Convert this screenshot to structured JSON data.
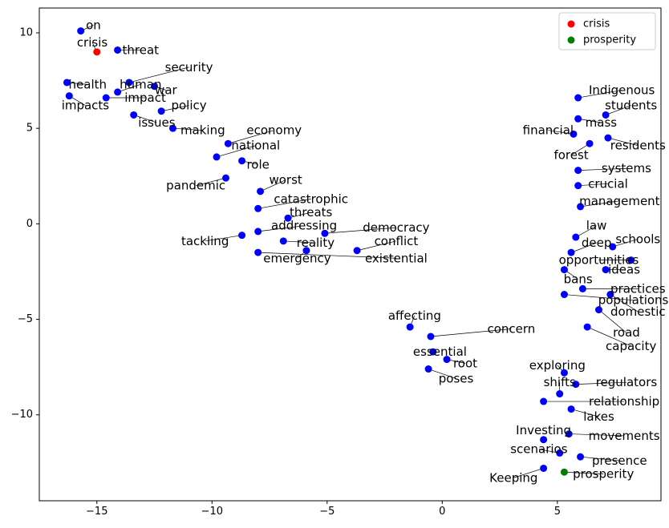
{
  "chart_data": {
    "type": "scatter",
    "title": "",
    "xlabel": "",
    "ylabel": "",
    "xlim": [
      -17.5,
      9.5
    ],
    "ylim": [
      -14.5,
      11.3
    ],
    "xticks": [
      -15,
      -10,
      -5,
      0,
      5
    ],
    "yticks": [
      -10,
      -5,
      0,
      5,
      10
    ],
    "tick_labels_x": [
      "−15",
      "−10",
      "−5",
      "0",
      "5"
    ],
    "tick_labels_y": [
      "−10",
      "−5",
      "0",
      "5",
      "10"
    ],
    "grid": false,
    "legend_position": "top-right",
    "colors": {
      "words": "#0000ff",
      "crisis": "#ff0000",
      "prosperity": "#008000",
      "connector": "#000000"
    },
    "legend": [
      {
        "name": "crisis",
        "color": "#ff0000"
      },
      {
        "name": "prosperity",
        "color": "#008000"
      }
    ],
    "series": [
      {
        "name": "words",
        "color": "#0000ff",
        "points": [
          {
            "label": "on",
            "x": -15.7,
            "y": 10.1,
            "label_pos": [
              -15.15,
              10.4
            ]
          },
          {
            "label": "threat",
            "x": -14.1,
            "y": 9.1,
            "label_pos": [
              -13.1,
              9.1
            ]
          },
          {
            "label": "security",
            "x": -13.6,
            "y": 7.4,
            "label_pos": [
              -11.0,
              8.2
            ]
          },
          {
            "label": "health",
            "x": -16.3,
            "y": 7.4,
            "label_pos": [
              -15.4,
              7.3
            ]
          },
          {
            "label": "human",
            "x": -14.1,
            "y": 6.9,
            "label_pos": [
              -13.1,
              7.3
            ]
          },
          {
            "label": "war",
            "x": -12.5,
            "y": 7.2,
            "label_pos": [
              -12.0,
              7.0
            ]
          },
          {
            "label": "impacts",
            "x": -16.2,
            "y": 6.7,
            "label_pos": [
              -15.5,
              6.2
            ]
          },
          {
            "label": "impact",
            "x": -14.6,
            "y": 6.6,
            "label_pos": [
              -12.9,
              6.6
            ]
          },
          {
            "label": "policy",
            "x": -12.2,
            "y": 5.9,
            "label_pos": [
              -11.0,
              6.2
            ]
          },
          {
            "label": "issues",
            "x": -13.4,
            "y": 5.7,
            "label_pos": [
              -12.4,
              5.3
            ]
          },
          {
            "label": "making",
            "x": -11.7,
            "y": 5.0,
            "label_pos": [
              -10.4,
              4.9
            ]
          },
          {
            "label": "economy",
            "x": -9.3,
            "y": 4.2,
            "label_pos": [
              -7.3,
              4.9
            ]
          },
          {
            "label": "national",
            "x": -9.8,
            "y": 3.5,
            "label_pos": [
              -8.1,
              4.1
            ]
          },
          {
            "label": "role",
            "x": -8.7,
            "y": 3.3,
            "label_pos": [
              -8.0,
              3.1
            ]
          },
          {
            "label": "pandemic",
            "x": -9.4,
            "y": 2.4,
            "label_pos": [
              -10.7,
              2.0
            ]
          },
          {
            "label": "worst",
            "x": -7.9,
            "y": 1.7,
            "label_pos": [
              -6.8,
              2.3
            ]
          },
          {
            "label": "catastrophic",
            "x": -8.0,
            "y": 0.8,
            "label_pos": [
              -5.7,
              1.3
            ]
          },
          {
            "label": "threats",
            "x": -6.7,
            "y": 0.3,
            "label_pos": [
              -5.7,
              0.6
            ]
          },
          {
            "label": "addressing",
            "x": -8.0,
            "y": -0.4,
            "label_pos": [
              -6.0,
              -0.1
            ]
          },
          {
            "label": "democracy",
            "x": -5.1,
            "y": -0.5,
            "label_pos": [
              -2.0,
              -0.2
            ]
          },
          {
            "label": "tackling",
            "x": -8.7,
            "y": -0.6,
            "label_pos": [
              -10.3,
              -0.9
            ]
          },
          {
            "label": "reality",
            "x": -6.9,
            "y": -0.9,
            "label_pos": [
              -5.5,
              -1.0
            ]
          },
          {
            "label": "conflict",
            "x": -3.7,
            "y": -1.4,
            "label_pos": [
              -2.0,
              -0.9
            ]
          },
          {
            "label": "emergency",
            "x": -5.9,
            "y": -1.4,
            "label_pos": [
              -6.3,
              -1.8
            ]
          },
          {
            "label": "existential",
            "x": -8.0,
            "y": -1.5,
            "label_pos": [
              -2.0,
              -1.8
            ]
          },
          {
            "label": "affecting",
            "x": -1.4,
            "y": -5.4,
            "label_pos": [
              -1.2,
              -4.8
            ]
          },
          {
            "label": "concern",
            "x": -0.5,
            "y": -5.9,
            "label_pos": [
              3.0,
              -5.5
            ]
          },
          {
            "label": "essential",
            "x": -0.4,
            "y": -6.7,
            "label_pos": [
              -0.1,
              -6.7
            ]
          },
          {
            "label": "root",
            "x": 0.2,
            "y": -7.1,
            "label_pos": [
              1.0,
              -7.3
            ]
          },
          {
            "label": "poses",
            "x": -0.6,
            "y": -7.6,
            "label_pos": [
              0.6,
              -8.1
            ]
          },
          {
            "label": "Indigenous",
            "x": 5.9,
            "y": 6.6,
            "label_pos": [
              7.8,
              7.0
            ]
          },
          {
            "label": "students",
            "x": 7.1,
            "y": 5.7,
            "label_pos": [
              8.2,
              6.2
            ]
          },
          {
            "label": "mass",
            "x": 5.9,
            "y": 5.5,
            "label_pos": [
              6.9,
              5.3
            ]
          },
          {
            "label": "financial",
            "x": 5.7,
            "y": 4.7,
            "label_pos": [
              4.6,
              4.9
            ]
          },
          {
            "label": "residents",
            "x": 7.2,
            "y": 4.5,
            "label_pos": [
              8.5,
              4.1
            ]
          },
          {
            "label": "forest",
            "x": 6.4,
            "y": 4.2,
            "label_pos": [
              5.6,
              3.6
            ]
          },
          {
            "label": "systems",
            "x": 5.9,
            "y": 2.8,
            "label_pos": [
              8.0,
              2.9
            ]
          },
          {
            "label": "crucial",
            "x": 5.9,
            "y": 2.0,
            "label_pos": [
              7.2,
              2.1
            ]
          },
          {
            "label": "management",
            "x": 6.0,
            "y": 0.9,
            "label_pos": [
              7.7,
              1.2
            ]
          },
          {
            "label": "law",
            "x": 5.8,
            "y": -0.7,
            "label_pos": [
              6.7,
              -0.1
            ]
          },
          {
            "label": "schools",
            "x": 7.4,
            "y": -1.2,
            "label_pos": [
              8.5,
              -0.8
            ]
          },
          {
            "label": "deep",
            "x": 5.6,
            "y": -1.5,
            "label_pos": [
              6.7,
              -1.0
            ]
          },
          {
            "label": "opportunities",
            "x": 8.2,
            "y": -1.9,
            "label_pos": [
              6.8,
              -1.9
            ]
          },
          {
            "label": "ideas",
            "x": 7.1,
            "y": -2.4,
            "label_pos": [
              7.9,
              -2.4
            ]
          },
          {
            "label": "bans",
            "x": 5.3,
            "y": -2.4,
            "label_pos": [
              5.9,
              -2.9
            ]
          },
          {
            "label": "practices",
            "x": 6.1,
            "y": -3.4,
            "label_pos": [
              8.5,
              -3.4
            ]
          },
          {
            "label": "populations",
            "x": 5.3,
            "y": -3.7,
            "label_pos": [
              8.3,
              -4.0
            ]
          },
          {
            "label": "domestic",
            "x": 7.3,
            "y": -3.7,
            "label_pos": [
              8.5,
              -4.6
            ]
          },
          {
            "label": "road",
            "x": 6.8,
            "y": -4.5,
            "label_pos": [
              8.0,
              -5.7
            ]
          },
          {
            "label": "capacity",
            "x": 6.3,
            "y": -5.4,
            "label_pos": [
              8.2,
              -6.4
            ]
          },
          {
            "label": "exploring",
            "x": 5.3,
            "y": -7.8,
            "label_pos": [
              5.0,
              -7.4
            ]
          },
          {
            "label": "regulators",
            "x": 5.8,
            "y": -8.4,
            "label_pos": [
              8.0,
              -8.3
            ]
          },
          {
            "label": "shifts",
            "x": 5.1,
            "y": -8.9,
            "label_pos": [
              5.1,
              -8.3
            ]
          },
          {
            "label": "relationship",
            "x": 4.4,
            "y": -9.3,
            "label_pos": [
              7.9,
              -9.3
            ]
          },
          {
            "label": "lakes",
            "x": 5.6,
            "y": -9.7,
            "label_pos": [
              6.8,
              -10.1
            ]
          },
          {
            "label": "Investing",
            "x": 4.4,
            "y": -11.3,
            "label_pos": [
              4.4,
              -10.8
            ]
          },
          {
            "label": "movements",
            "x": 5.5,
            "y": -11.0,
            "label_pos": [
              7.9,
              -11.1
            ]
          },
          {
            "label": "scenarios",
            "x": 5.1,
            "y": -12.0,
            "label_pos": [
              4.2,
              -11.8
            ]
          },
          {
            "label": "presence",
            "x": 6.0,
            "y": -12.2,
            "label_pos": [
              7.7,
              -12.4
            ]
          },
          {
            "label": "Keeping",
            "x": 4.4,
            "y": -12.8,
            "label_pos": [
              3.1,
              -13.3
            ]
          },
          {
            "label": "crisis",
            "x": -15.0,
            "y": 9.0,
            "label_pos": [
              -15.2,
              9.5
            ],
            "color": "#ff0000"
          },
          {
            "label": "prosperity",
            "x": 5.3,
            "y": -13.0,
            "label_pos": [
              7.0,
              -13.1
            ],
            "color": "#008000"
          }
        ]
      }
    ]
  }
}
